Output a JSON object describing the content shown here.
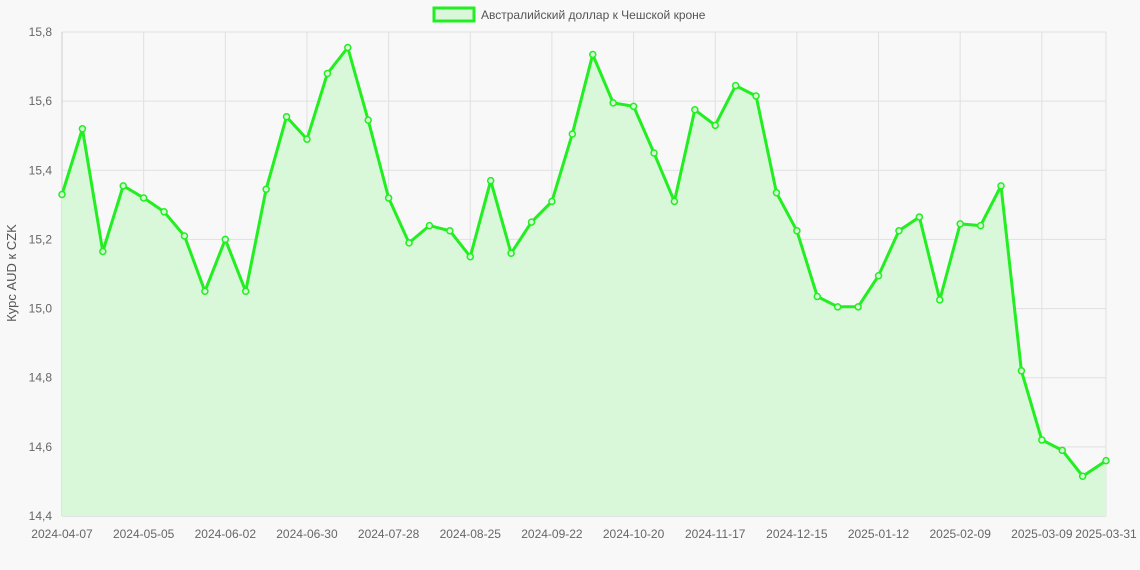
{
  "chart_data": {
    "type": "line",
    "ylabel": "Курс AUD к CZK",
    "xlabel": "",
    "ylim": [
      14.4,
      15.8
    ],
    "y_ticks": [
      "14,4",
      "14,6",
      "14,8",
      "15,0",
      "15,2",
      "15,4",
      "15,6",
      "15,8"
    ],
    "x_tick_labels": [
      "2024-04-07",
      "2024-05-05",
      "2024-06-02",
      "2024-06-30",
      "2024-07-28",
      "2024-08-25",
      "2024-09-22",
      "2024-10-20",
      "2024-11-17",
      "2024-12-15",
      "2025-01-12",
      "2025-02-09",
      "2025-03-09",
      "2025-03-31"
    ],
    "grid": true,
    "legend_position": "top-center",
    "series": [
      {
        "name": "Австралийский доллар к Чешской кроне",
        "color": "#22ee22",
        "fill_color": "#d9f7d9",
        "x": [
          "2024-04-07",
          "2024-04-14",
          "2024-04-21",
          "2024-04-28",
          "2024-05-05",
          "2024-05-12",
          "2024-05-19",
          "2024-05-26",
          "2024-06-02",
          "2024-06-09",
          "2024-06-16",
          "2024-06-23",
          "2024-06-30",
          "2024-07-07",
          "2024-07-14",
          "2024-07-21",
          "2024-07-28",
          "2024-08-04",
          "2024-08-11",
          "2024-08-18",
          "2024-08-25",
          "2024-09-01",
          "2024-09-08",
          "2024-09-15",
          "2024-09-22",
          "2024-09-29",
          "2024-10-06",
          "2024-10-13",
          "2024-10-20",
          "2024-10-27",
          "2024-11-03",
          "2024-11-10",
          "2024-11-17",
          "2024-11-24",
          "2024-12-01",
          "2024-12-08",
          "2024-12-15",
          "2024-12-22",
          "2024-12-29",
          "2025-01-05",
          "2025-01-12",
          "2025-01-19",
          "2025-01-26",
          "2025-02-02",
          "2025-02-09",
          "2025-02-16",
          "2025-02-23",
          "2025-03-02",
          "2025-03-09",
          "2025-03-16",
          "2025-03-23",
          "2025-03-31"
        ],
        "values": [
          15.33,
          15.52,
          15.165,
          15.355,
          15.32,
          15.28,
          15.21,
          15.05,
          15.2,
          15.05,
          15.345,
          15.555,
          15.49,
          15.68,
          15.755,
          15.545,
          15.32,
          15.19,
          15.24,
          15.225,
          15.15,
          15.37,
          15.16,
          15.25,
          15.31,
          15.505,
          15.735,
          15.595,
          15.585,
          15.45,
          15.31,
          15.575,
          15.53,
          15.645,
          15.615,
          15.335,
          15.225,
          15.035,
          15.005,
          15.005,
          15.095,
          15.225,
          15.265,
          15.025,
          15.245,
          15.24,
          15.355,
          14.82,
          14.62,
          14.59,
          14.515,
          14.56
        ]
      }
    ]
  }
}
